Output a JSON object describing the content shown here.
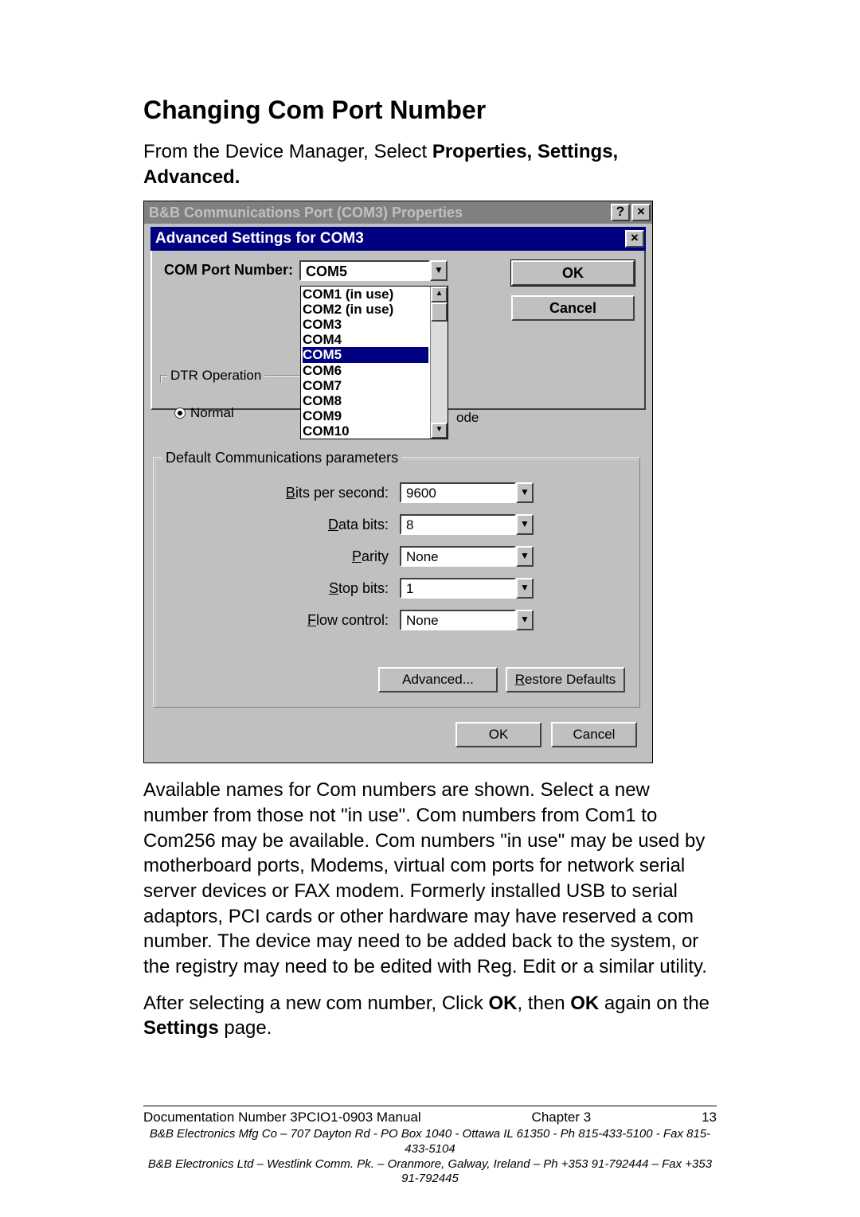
{
  "heading": "Changing Com Port Number",
  "intro_pre": "From the Device Manager, Select ",
  "intro_bold": "Properties, Settings, Advanced.",
  "outer_window": {
    "title": "B&B Communications Port (COM3) Properties",
    "help_glyph": "?",
    "close_glyph": "×"
  },
  "inner_window": {
    "title": "Advanced Settings for COM3",
    "close_glyph": "×",
    "com_label": "COM Port Number:",
    "com_selected": "COM5",
    "ok_label": "OK",
    "cancel_label": "Cancel",
    "list": [
      "COM1 (in use)",
      "COM2 (in use)",
      "COM3",
      "COM4",
      "COM5",
      "COM6",
      "COM7",
      "COM8",
      "COM9",
      "COM10"
    ],
    "list_selected_index": 4,
    "dtr_label": "DTR Operation",
    "normal_label": "Normal",
    "ode_fragment": "ode"
  },
  "params": {
    "group_label": "Default Communications parameters",
    "rows": [
      {
        "label_u": "B",
        "label_rest": "its per second:",
        "value": "9600"
      },
      {
        "label_u": "D",
        "label_rest": "ata bits:",
        "value": "8"
      },
      {
        "label_u": "P",
        "label_rest": "arity",
        "value": "None"
      },
      {
        "label_u": "S",
        "label_rest": "top bits:",
        "value": "1"
      },
      {
        "label_u": "F",
        "label_rest": "low control:",
        "value": "None"
      }
    ],
    "advanced_btn": "Advanced...",
    "restore_btn_u": "R",
    "restore_btn_rest": "estore Defaults"
  },
  "outer_buttons": {
    "ok": "OK",
    "cancel": "Cancel"
  },
  "para2": "Available names for Com numbers are shown. Select a new number from those not \"in use\". Com numbers from Com1 to Com256 may be available. Com numbers \"in use\" may be used by motherboard ports, Modems, virtual com ports for network serial server devices or FAX modem. Formerly installed USB to serial adaptors, PCI cards or other hardware may have reserved a com number. The device may need to be added back to the system, or the registry may need to be edited with Reg. Edit or a similar utility.",
  "para3_pre": "After selecting a new com number, Click ",
  "para3_b1": "OK",
  "para3_mid": ", then ",
  "para3_b2": "OK",
  "para3_post": " again on the ",
  "para3_b3": "Settings",
  "para3_end": " page.",
  "footer": {
    "doc": "Documentation Number 3PCIO1-0903 Manual",
    "chapter": "Chapter 3",
    "page": "13",
    "line1": "B&B Electronics Mfg Co – 707 Dayton Rd - PO Box 1040 - Ottawa IL 61350 - Ph 815-433-5100 - Fax 815-433-5104",
    "line2": "B&B Electronics Ltd – Westlink Comm. Pk. – Oranmore, Galway, Ireland – Ph +353 91-792444 – Fax +353 91-792445"
  }
}
